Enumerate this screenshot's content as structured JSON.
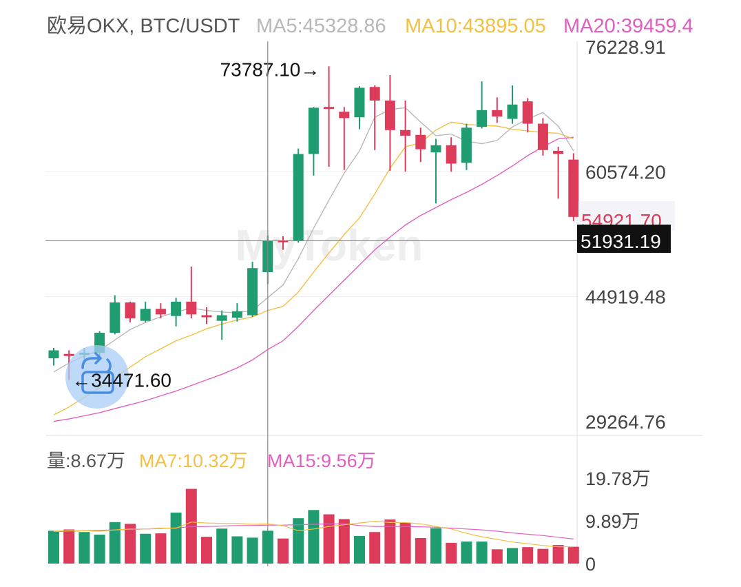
{
  "header": {
    "pair": "欧易OKX, BTC/USDT",
    "ma5": "MA5:45328.86",
    "ma10": "MA10:43895.05",
    "ma20": "MA20:39459.4"
  },
  "volume_header": {
    "vol": "量:8.67万",
    "ma7": "MA7:10.32万",
    "ma15": "MA15:9.56万"
  },
  "watermark": "MyToken",
  "colors": {
    "up": "#1f9d70",
    "down": "#dc3b5a",
    "ma5": "#b8b8b8",
    "ma10": "#f2c043",
    "ma20": "#e05fc0",
    "header_gray": "#555555"
  },
  "chart_data": {
    "type": "candlestick",
    "price_axis": {
      "ticks": [
        {
          "value": 76228.91,
          "label": "76228.91"
        },
        {
          "value": 60574.2,
          "label": "60574.20"
        },
        {
          "value": 44919.48,
          "label": "44919.48"
        },
        {
          "value": 29264.76,
          "label": "29264.76"
        }
      ],
      "range": [
        29264.76,
        76228.91
      ]
    },
    "crosshair": {
      "price": 51931.19,
      "label": "51931.19",
      "candle_index": 14
    },
    "last_price_label": "54921.70",
    "max_marker": {
      "value": 73787.1,
      "label": "73787.10→",
      "candle_index": 18
    },
    "min_marker": {
      "value": 34471.6,
      "label": "←34471.60",
      "candle_index": 1
    },
    "candles": [
      {
        "o": 37200,
        "h": 38500,
        "l": 36300,
        "c": 38200
      },
      {
        "o": 37750,
        "h": 38200,
        "l": 34471.6,
        "c": 37700
      },
      {
        "o": 37650,
        "h": 38500,
        "l": 36400,
        "c": 37900
      },
      {
        "o": 37900,
        "h": 40600,
        "l": 37500,
        "c": 40400
      },
      {
        "o": 40400,
        "h": 45100,
        "l": 40200,
        "c": 44200
      },
      {
        "o": 44200,
        "h": 44300,
        "l": 41700,
        "c": 42200
      },
      {
        "o": 41900,
        "h": 44300,
        "l": 41700,
        "c": 43400
      },
      {
        "o": 43400,
        "h": 44100,
        "l": 42200,
        "c": 42700
      },
      {
        "o": 42500,
        "h": 44800,
        "l": 41200,
        "c": 44300
      },
      {
        "o": 44300,
        "h": 48700,
        "l": 42200,
        "c": 42700
      },
      {
        "o": 42600,
        "h": 43600,
        "l": 41500,
        "c": 42400
      },
      {
        "o": 41900,
        "h": 43200,
        "l": 39500,
        "c": 42600
      },
      {
        "o": 42300,
        "h": 44100,
        "l": 41800,
        "c": 43100
      },
      {
        "o": 42600,
        "h": 49300,
        "l": 42400,
        "c": 48500
      },
      {
        "o": 48000,
        "h": 52600,
        "l": 46500,
        "c": 51900
      },
      {
        "o": 52000,
        "h": 52500,
        "l": 50800,
        "c": 51900
      },
      {
        "o": 51900,
        "h": 63500,
        "l": 51700,
        "c": 62800
      },
      {
        "o": 62800,
        "h": 68700,
        "l": 60100,
        "c": 68600
      },
      {
        "o": 68700,
        "h": 73787.1,
        "l": 61200,
        "c": 68500
      },
      {
        "o": 68100,
        "h": 68700,
        "l": 60800,
        "c": 67300
      },
      {
        "o": 67400,
        "h": 71300,
        "l": 65900,
        "c": 71100
      },
      {
        "o": 71200,
        "h": 71400,
        "l": 63300,
        "c": 69500
      },
      {
        "o": 69500,
        "h": 72700,
        "l": 60700,
        "c": 65800
      },
      {
        "o": 65800,
        "h": 69500,
        "l": 60600,
        "c": 65100
      },
      {
        "o": 65200,
        "h": 66100,
        "l": 61800,
        "c": 63400
      },
      {
        "o": 63000,
        "h": 64700,
        "l": 56600,
        "c": 63900
      },
      {
        "o": 63900,
        "h": 64900,
        "l": 60600,
        "c": 61600
      },
      {
        "o": 61700,
        "h": 66600,
        "l": 60800,
        "c": 66100
      },
      {
        "o": 66200,
        "h": 71900,
        "l": 66000,
        "c": 68300
      },
      {
        "o": 68300,
        "h": 69900,
        "l": 66700,
        "c": 67500
      },
      {
        "o": 67200,
        "h": 71400,
        "l": 66600,
        "c": 69000
      },
      {
        "o": 69400,
        "h": 69800,
        "l": 65500,
        "c": 66600
      },
      {
        "o": 66600,
        "h": 67300,
        "l": 62600,
        "c": 63300
      },
      {
        "o": 63200,
        "h": 63700,
        "l": 57200,
        "c": 62800
      },
      {
        "o": 62100,
        "h": 62900,
        "l": 54400,
        "c": 54920
      }
    ],
    "ma5_values": [
      35500,
      36600,
      37500,
      38200,
      39500,
      40800,
      41700,
      42400,
      43000,
      43500,
      43200,
      43000,
      42900,
      43200,
      44800,
      46400,
      49700,
      53500,
      57000,
      60400,
      63200,
      67400,
      68400,
      68600,
      66800,
      65100,
      65300,
      64400,
      64100,
      64500,
      66200,
      67200,
      68000,
      66300,
      63200
    ],
    "ma10_values": [
      30100,
      31100,
      32300,
      33500,
      34800,
      36100,
      37400,
      38400,
      39400,
      40100,
      40900,
      41500,
      42000,
      42400,
      43200,
      43700,
      45500,
      48000,
      50400,
      52700,
      54800,
      57800,
      61000,
      63700,
      64200,
      65800,
      66800,
      66500,
      66400,
      66300,
      65900,
      65700,
      65500,
      65400,
      64700
    ],
    "ma20_values": [
      29300,
      29600,
      30000,
      30400,
      30900,
      31400,
      31900,
      32500,
      33100,
      33800,
      34500,
      35200,
      36000,
      37000,
      38300,
      39400,
      41200,
      43200,
      45100,
      47000,
      48900,
      50800,
      52400,
      53900,
      55100,
      56100,
      57100,
      58000,
      59000,
      60100,
      61300,
      62600,
      63700,
      64700,
      64900
    ],
    "volume_axis": {
      "ticks": [
        {
          "value": 19.78,
          "label": "19.78万"
        },
        {
          "value": 9.89,
          "label": "9.89万"
        },
        {
          "value": 0,
          "label": "0"
        }
      ],
      "unit": "万"
    },
    "volumes": [
      7.6,
      7.9,
      7.3,
      6.7,
      9.6,
      9.2,
      6.9,
      7.0,
      11.8,
      17.3,
      6.2,
      8.1,
      6.3,
      6.0,
      7.6,
      5.8,
      10.5,
      12.4,
      11.4,
      10.3,
      6.4,
      7.3,
      10.2,
      9.5,
      5.9,
      8.2,
      4.8,
      5.1,
      5.1,
      3.3,
      3.6,
      3.8,
      3.4,
      4.3,
      3.9
    ],
    "vol_ma7_values": [
      7.5,
      7.6,
      7.6,
      7.5,
      7.8,
      8.0,
      8.0,
      8.2,
      8.2,
      9.6,
      9.4,
      9.3,
      9.3,
      9.1,
      9.2,
      8.8,
      7.6,
      8.0,
      8.6,
      9.0,
      9.4,
      9.8,
      9.5,
      9.5,
      9.2,
      8.6,
      8.0,
      7.0,
      6.2,
      5.6,
      5.0,
      4.6,
      4.2,
      3.9,
      3.9
    ],
    "vol_ma15_values": [
      7.4,
      7.5,
      7.6,
      7.7,
      7.8,
      7.9,
      8.0,
      8.1,
      8.3,
      8.5,
      8.6,
      8.7,
      8.8,
      8.8,
      8.9,
      8.9,
      9.0,
      9.1,
      9.2,
      9.2,
      8.8,
      8.6,
      8.6,
      8.6,
      8.5,
      8.4,
      8.2,
      8.0,
      7.8,
      7.5,
      7.1,
      6.8,
      6.5,
      6.1,
      5.7
    ]
  }
}
